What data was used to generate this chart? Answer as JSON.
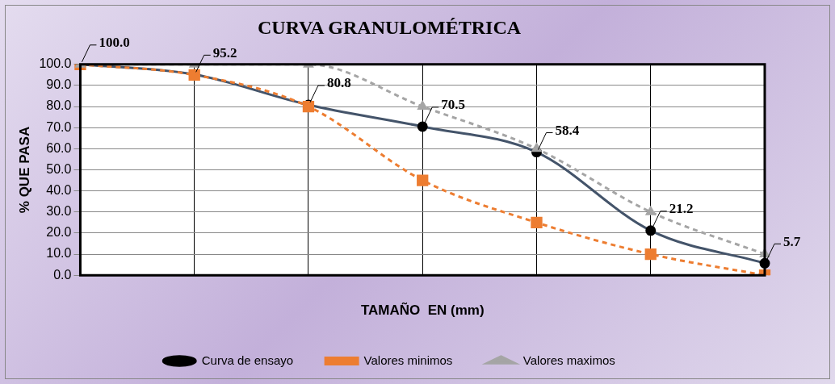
{
  "chart_data": {
    "type": "line",
    "title": "CURVA GRANULOMÉTRICA",
    "xlabel": "TAMAÑO  EN (mm)",
    "ylabel": "% QUE PASA",
    "categories": [
      null,
      null,
      null,
      null,
      null,
      null,
      null
    ],
    "series": [
      {
        "name": "Curva de ensayo",
        "color": "#44546a",
        "marker": "circle",
        "line_style": "solid",
        "values": [
          100.0,
          95.2,
          80.8,
          70.5,
          58.4,
          21.2,
          5.7
        ],
        "value_labels": [
          "100.0",
          "95.2",
          "80.8",
          "70.5",
          "58.4",
          "21.2",
          "5.7"
        ]
      },
      {
        "name": "Valores minimos",
        "color": "#ed7d31",
        "marker": "square",
        "line_style": "dashed",
        "values": [
          100,
          95,
          80,
          45,
          25,
          10,
          0
        ]
      },
      {
        "name": "Valores maximos",
        "color": "#a5a5a5",
        "marker": "triangle",
        "line_style": "dashed",
        "values": [
          100,
          100,
          100,
          80,
          60,
          30,
          10
        ]
      }
    ],
    "ylim": [
      0,
      100
    ],
    "yticks": [
      {
        "value": 0,
        "label": "0.0"
      },
      {
        "value": 10,
        "label": "10.0"
      },
      {
        "value": 20,
        "label": "20.0"
      },
      {
        "value": 30,
        "label": "30.0"
      },
      {
        "value": 40,
        "label": "40.0"
      },
      {
        "value": 50,
        "label": "50.0"
      },
      {
        "value": 60,
        "label": "60.0"
      },
      {
        "value": 70,
        "label": "70.0"
      },
      {
        "value": 80,
        "label": "80.0"
      },
      {
        "value": 90,
        "label": "90.0"
      },
      {
        "value": 100,
        "label": "100.0"
      }
    ],
    "grid": true,
    "legend": "bottom"
  }
}
